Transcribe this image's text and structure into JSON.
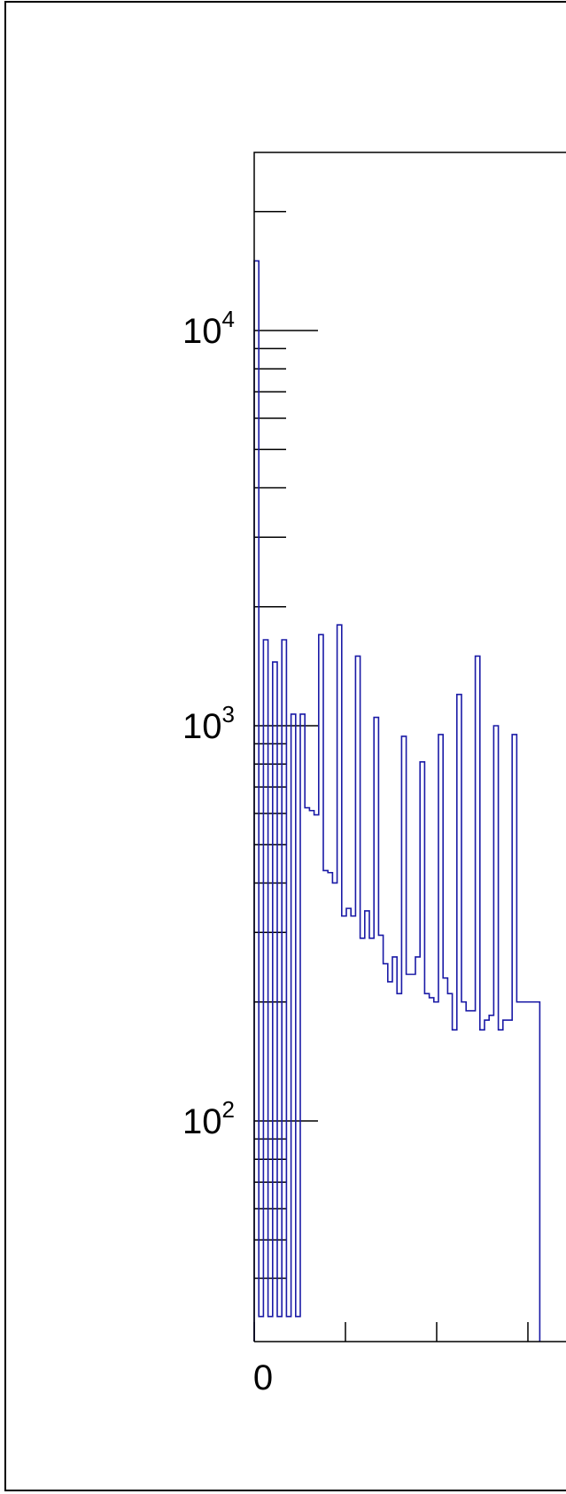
{
  "chart_data": {
    "type": "histogram",
    "title": "",
    "xlabel": "",
    "ylabel": "",
    "y_scale": "log",
    "grid": false,
    "legend": "none",
    "line_color": "#1a1aa6",
    "x_tick_labels": [
      "0"
    ],
    "y_tick_labels": [
      {
        "base": "10",
        "exp": "4",
        "value": 10000
      },
      {
        "base": "10",
        "exp": "3",
        "value": 1000
      },
      {
        "base": "10",
        "exp": "2",
        "value": 100
      }
    ],
    "ylim": [
      32,
      28000
    ],
    "bin_count": 62,
    "bin_values": [
      15000,
      32,
      1650,
      32,
      1450,
      32,
      1650,
      32,
      1070,
      32,
      1070,
      620,
      610,
      595,
      1700,
      430,
      425,
      400,
      1800,
      330,
      345,
      330,
      1500,
      290,
      340,
      290,
      1050,
      295,
      250,
      225,
      260,
      210,
      940,
      235,
      235,
      260,
      810,
      210,
      205,
      200,
      950,
      230,
      210,
      170,
      1200,
      200,
      190,
      190,
      1500,
      170,
      180,
      185,
      1000,
      170,
      180,
      180,
      950,
      200,
      200,
      200,
      200,
      200
    ]
  }
}
